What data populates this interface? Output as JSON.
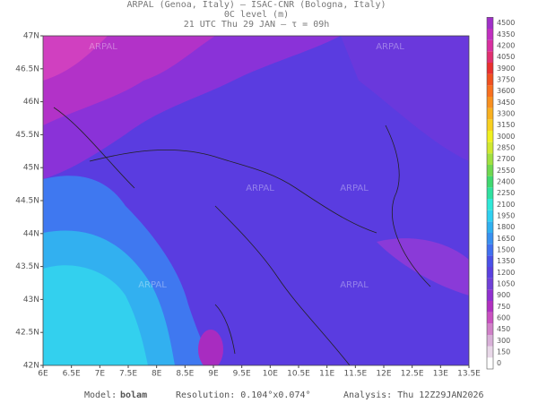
{
  "header": {
    "line1": "ARPAL (Genoa, Italy)  –  ISAC-CNR (Bologna, Italy)",
    "line2": "0C level (m)",
    "line3": "21 UTC Thu 29 JAN  –  τ = 09h"
  },
  "axes": {
    "lat": [
      "42N",
      "42.5N",
      "43N",
      "43.5N",
      "44N",
      "44.5N",
      "45N",
      "45.5N",
      "46N",
      "46.5N",
      "47N"
    ],
    "lon": [
      "6E",
      "6.5E",
      "7E",
      "7.5E",
      "8E",
      "8.5E",
      "9E",
      "9.5E",
      "10E",
      "10.5E",
      "11E",
      "11.5E",
      "12E",
      "12.5E",
      "13E",
      "13.5E"
    ]
  },
  "colorbar": {
    "labels": [
      0,
      150,
      300,
      450,
      600,
      750,
      900,
      1050,
      1200,
      1350,
      1500,
      1650,
      1800,
      1950,
      2100,
      2250,
      2400,
      2550,
      2700,
      2850,
      3000,
      3150,
      3300,
      3450,
      3600,
      3750,
      3900,
      4050,
      4200,
      4350,
      4500
    ],
    "colors": [
      "#ffffff",
      "#e8d8e8",
      "#d8b0d8",
      "#d080c8",
      "#c850c0",
      "#b030c0",
      "#9030d0",
      "#7040d8",
      "#5a40e0",
      "#4a50e8",
      "#4070f0",
      "#3890f0",
      "#30b0f0",
      "#30d0f0",
      "#30e8d8",
      "#30e0a0",
      "#40d870",
      "#70d850",
      "#a0e040",
      "#d0e830",
      "#f0f020",
      "#f8d020",
      "#f8b020",
      "#f89020",
      "#f87020",
      "#f05020",
      "#e83030",
      "#e03070",
      "#d830a0",
      "#c030c0",
      "#a030c8"
    ]
  },
  "watermark": "ARPAL",
  "footer": {
    "model_label": "Model:",
    "model": "bolam",
    "resolution": "Resolution: 0.104°x0.074°",
    "analysis": "Analysis: Thu 12Z29JAN2026"
  }
}
